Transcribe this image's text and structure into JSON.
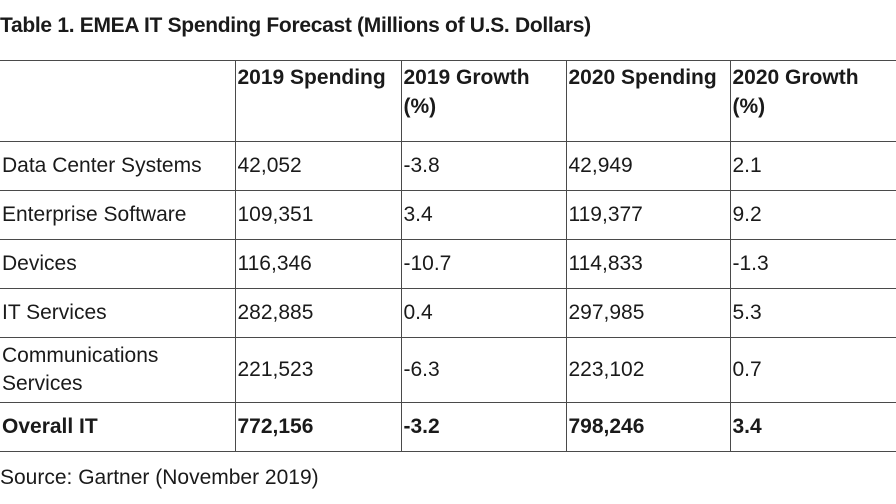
{
  "title": "Table 1. EMEA IT Spending Forecast (Millions of U.S. Dollars)",
  "table": {
    "headers": [
      "",
      "2019 Spending",
      "2019 Growth (%)",
      "2020 Spending",
      "2020 Growth (%)"
    ],
    "rows": [
      [
        "Data Center Systems",
        "42,052",
        "-3.8",
        "42,949",
        "2.1"
      ],
      [
        "Enterprise Software",
        "109,351",
        "3.4",
        "119,377",
        "9.2"
      ],
      [
        "Devices",
        "116,346",
        "-10.7",
        "114,833",
        "-1.3"
      ],
      [
        "IT Services",
        "282,885",
        "0.4",
        "297,985",
        "5.3"
      ],
      [
        "Communications Services",
        "221,523",
        "-6.3",
        "223,102",
        "0.7"
      ]
    ],
    "total": [
      "Overall IT",
      "772,156",
      "-3.2",
      "798,246",
      "3.4"
    ]
  },
  "source": "Source: Gartner (November 2019)"
}
